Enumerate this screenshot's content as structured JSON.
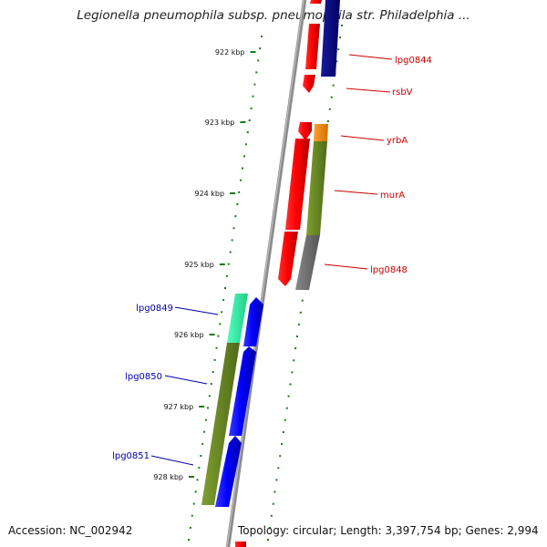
{
  "title": "Legionella pneumophila subsp. pneumophila str. Philadelphia ...",
  "footer": {
    "accession": "Accession: NC_002942",
    "summary": "Topology: circular; Length: 3,397,754 bp; Genes: 2,994"
  },
  "ticks": [
    "922 kbp",
    "923 kbp",
    "924 kbp",
    "925 kbp",
    "926 kbp",
    "927 kbp",
    "928 kbp"
  ],
  "gene_labels": {
    "right": [
      "lpg0844",
      "rsbV",
      "yrbA",
      "murA",
      "lpg0848"
    ],
    "left": [
      "lpg0849",
      "lpg0850",
      "lpg0851"
    ]
  },
  "colors": {
    "forward_strand": "#0000ff",
    "reverse_strand": "#ff0000",
    "right_label": "#cc0000",
    "left_label": "#0000aa",
    "tick_mark": "#1a7a1a",
    "backbone": "#8c8c8c",
    "cog_olive": "#6b8e23",
    "cog_orange": "#ff8c00",
    "cog_grey": "#6e6e6e",
    "cog_teal": "#33ffaa",
    "cog_navy": "#00007a"
  }
}
